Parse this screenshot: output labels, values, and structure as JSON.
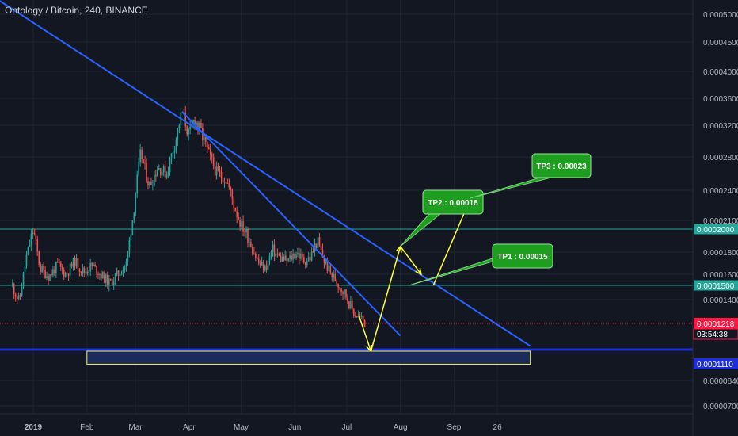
{
  "title": "Ontology / Bitcoin, 240, BINANCE",
  "colors": {
    "background": "#131722",
    "grid": "#1f2330",
    "up": "#26a69a",
    "down": "#ef5350",
    "trendline": "#2962ff",
    "level": "#26a69a",
    "current": "#ff1744",
    "support": "#1a237e",
    "arrow": "#ffff3b",
    "target": "#1e9e1e"
  },
  "chart_data": {
    "type": "candlestick",
    "symbol": "ONT/BTC",
    "interval": "240",
    "exchange": "BINANCE",
    "y_ticks": [
      "0.0005000",
      "0.0004500",
      "0.0004000",
      "0.0003600",
      "0.0003200",
      "0.0002800",
      "0.0002400",
      "0.0002100",
      "0.0001800",
      "0.0001600",
      "0.0001400",
      "0.0000840",
      "0.0000700"
    ],
    "x_ticks": [
      "2019",
      "Feb",
      "Mar",
      "Apr",
      "May",
      "Jun",
      "Jul",
      "Aug",
      "Sep",
      "26"
    ],
    "ohlc_path": [
      [
        "2018-12-20",
        0.00015
      ],
      [
        "2018-12-24",
        0.000138
      ],
      [
        "2018-12-28",
        0.000175
      ],
      [
        "2019-01-01",
        0.0002
      ],
      [
        "2019-01-05",
        0.000165
      ],
      [
        "2019-01-10",
        0.000158
      ],
      [
        "2019-01-15",
        0.000168
      ],
      [
        "2019-01-20",
        0.00016
      ],
      [
        "2019-01-25",
        0.000172
      ],
      [
        "2019-01-30",
        0.000162
      ],
      [
        "2019-02-04",
        0.000168
      ],
      [
        "2019-02-09",
        0.00016
      ],
      [
        "2019-02-14",
        0.000152
      ],
      [
        "2019-02-19",
        0.00016
      ],
      [
        "2019-02-24",
        0.00017
      ],
      [
        "2019-02-28",
        0.00022
      ],
      [
        "2019-03-04",
        0.000285
      ],
      [
        "2019-03-09",
        0.000245
      ],
      [
        "2019-03-14",
        0.000268
      ],
      [
        "2019-03-19",
        0.00026
      ],
      [
        "2019-03-24",
        0.0003
      ],
      [
        "2019-03-28",
        0.00034
      ],
      [
        "2019-04-01",
        0.000305
      ],
      [
        "2019-04-04",
        0.00033
      ],
      [
        "2019-04-08",
        0.00031
      ],
      [
        "2019-04-12",
        0.000285
      ],
      [
        "2019-04-17",
        0.00026
      ],
      [
        "2019-04-22",
        0.000255
      ],
      [
        "2019-04-27",
        0.000225
      ],
      [
        "2019-05-01",
        0.000205
      ],
      [
        "2019-05-06",
        0.00019
      ],
      [
        "2019-05-11",
        0.00017
      ],
      [
        "2019-05-15",
        0.000165
      ],
      [
        "2019-05-19",
        0.000182
      ],
      [
        "2019-05-23",
        0.000175
      ],
      [
        "2019-05-28",
        0.000172
      ],
      [
        "2019-06-02",
        0.00018
      ],
      [
        "2019-06-06",
        0.000172
      ],
      [
        "2019-06-10",
        0.000175
      ],
      [
        "2019-06-14",
        0.00019
      ],
      [
        "2019-06-18",
        0.000172
      ],
      [
        "2019-06-22",
        0.00016
      ],
      [
        "2019-06-27",
        0.00015
      ],
      [
        "2019-07-01",
        0.000142
      ],
      [
        "2019-07-05",
        0.00013
      ],
      [
        "2019-07-09",
        0.000126
      ],
      [
        "2019-07-12",
        0.000122
      ]
    ],
    "horizontal_levels": [
      {
        "price": 0.0002,
        "label": "0.0002000"
      },
      {
        "price": 0.00015,
        "label": "0.0001500"
      }
    ],
    "current_price": {
      "price": 0.0001218,
      "label": "0.0001218",
      "countdown": "03:54:38"
    },
    "support_zone": {
      "top": 0.000111,
      "bottom": 9.9e-05,
      "label": "0.0001110",
      "from": "2019-02-01",
      "to": "2019-10-15"
    },
    "trendlines": [
      {
        "from": [
          "2018-11-25",
          0.00056
        ],
        "to": [
          "2019-10-15",
          0.000113
        ]
      },
      {
        "from": [
          "2019-03-28",
          0.00034
        ],
        "to": [
          "2019-08-01",
          0.000117
        ]
      }
    ],
    "projection": [
      [
        "2019-07-08",
        0.000128
      ],
      [
        "2019-07-15",
        0.000111
      ],
      [
        "2019-08-01",
        0.000185
      ],
      [
        "2019-08-13",
        0.00016
      ],
      [
        "2019-08-20",
        0.00015
      ],
      [
        "2019-09-10",
        0.00023
      ]
    ],
    "targets": [
      {
        "label": "TP2 : 0.00018",
        "price": 0.00018
      },
      {
        "label": "TP1 : 0.00015",
        "price": 0.00015
      },
      {
        "label": "TP3 : 0.00023",
        "price": 0.00023
      }
    ]
  }
}
